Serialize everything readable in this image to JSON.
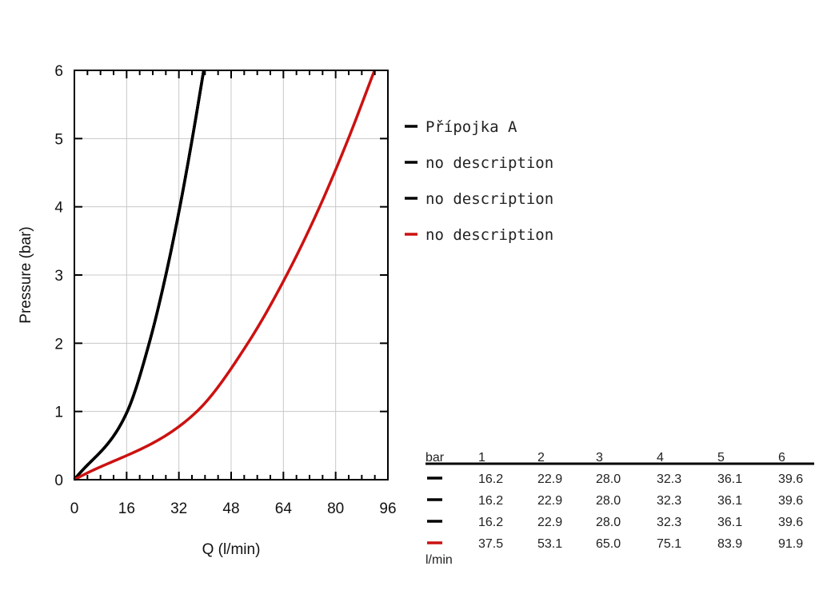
{
  "chart_data": {
    "type": "line",
    "xlabel": "Q (l/min)",
    "ylabel": "Pressure (bar)",
    "xlim": [
      0,
      96
    ],
    "ylim": [
      0,
      6
    ],
    "xticks": [
      0,
      16,
      32,
      48,
      64,
      80,
      96
    ],
    "yticks": [
      0,
      1,
      2,
      3,
      4,
      5,
      6
    ],
    "grid": true,
    "legend_position": "right",
    "series": [
      {
        "name": "Přípojka A",
        "color": "#000000",
        "x": [
          0,
          16.2,
          22.9,
          28.0,
          32.3,
          36.1,
          39.6
        ],
        "y": [
          0,
          1,
          2,
          3,
          4,
          5,
          6
        ]
      },
      {
        "name": "no description",
        "color": "#000000",
        "x": [
          0,
          16.2,
          22.9,
          28.0,
          32.3,
          36.1,
          39.6
        ],
        "y": [
          0,
          1,
          2,
          3,
          4,
          5,
          6
        ]
      },
      {
        "name": "no description",
        "color": "#000000",
        "x": [
          0,
          16.2,
          22.9,
          28.0,
          32.3,
          36.1,
          39.6
        ],
        "y": [
          0,
          1,
          2,
          3,
          4,
          5,
          6
        ]
      },
      {
        "name": "no description",
        "color": "#cc1111",
        "x": [
          0,
          37.5,
          53.1,
          65.0,
          75.1,
          83.9,
          91.9
        ],
        "y": [
          0,
          1,
          2,
          3,
          4,
          5,
          6
        ]
      }
    ]
  },
  "table": {
    "header_label": "bar",
    "unit_label": "l/min",
    "columns": [
      "1",
      "2",
      "3",
      "4",
      "5",
      "6"
    ],
    "rows": [
      {
        "color": "#000000",
        "values": [
          "16.2",
          "22.9",
          "28.0",
          "32.3",
          "36.1",
          "39.6"
        ]
      },
      {
        "color": "#000000",
        "values": [
          "16.2",
          "22.9",
          "28.0",
          "32.3",
          "36.1",
          "39.6"
        ]
      },
      {
        "color": "#000000",
        "values": [
          "16.2",
          "22.9",
          "28.0",
          "32.3",
          "36.1",
          "39.6"
        ]
      },
      {
        "color": "#cc1111",
        "values": [
          "37.5",
          "53.1",
          "65.0",
          "75.1",
          "83.9",
          "91.9"
        ]
      }
    ]
  }
}
